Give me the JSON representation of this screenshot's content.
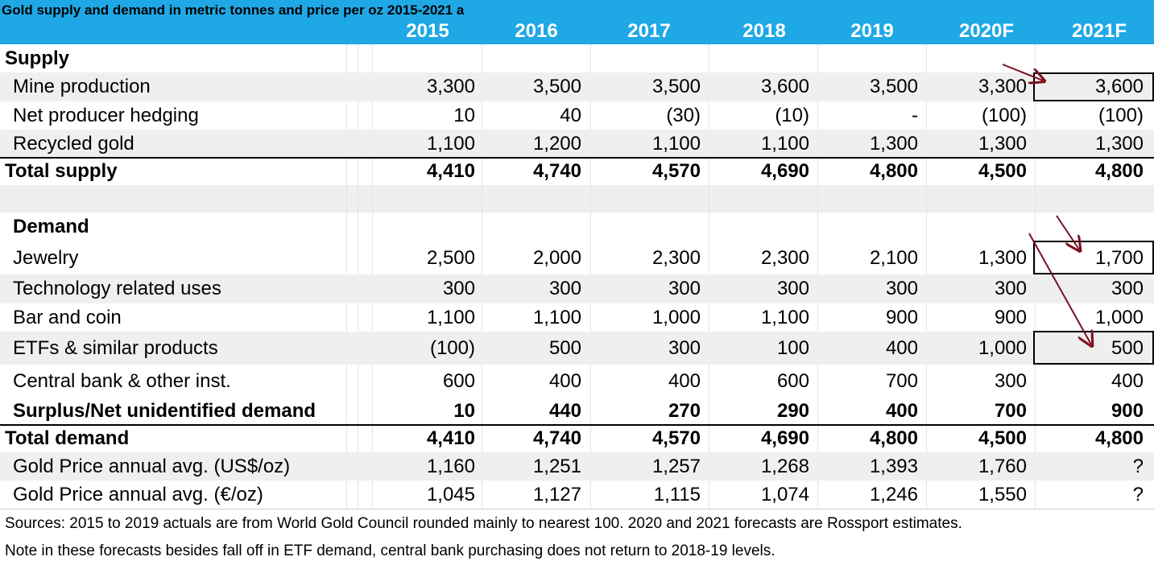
{
  "header": {
    "title": "Gold supply and demand in metric tonnes and price per oz 2015-2021 a",
    "years": [
      "2015",
      "2016",
      "2017",
      "2018",
      "2019",
      "2020F",
      "2021F"
    ]
  },
  "table": {
    "rows": [
      [
        "Supply"
      ],
      [
        "Mine production",
        "3,300",
        "3,500",
        "3,500",
        "3,600",
        "3,500",
        "3,300",
        "3,600"
      ],
      [
        "Net producer hedging",
        "10",
        "40",
        "(30)",
        "(10)",
        "-",
        "(100)",
        "(100)"
      ],
      [
        "Recycled gold",
        "1,100",
        "1,200",
        "1,100",
        "1,100",
        "1,300",
        "1,300",
        "1,300"
      ],
      [
        "Total supply",
        "4,410",
        "4,740",
        "4,570",
        "4,690",
        "4,800",
        "4,500",
        "4,800"
      ],
      [
        "Demand"
      ],
      [
        "Jewelry",
        "2,500",
        "2,000",
        "2,300",
        "2,300",
        "2,100",
        "1,300",
        "1,700"
      ],
      [
        "Technology related uses",
        "300",
        "300",
        "300",
        "300",
        "300",
        "300",
        "300"
      ],
      [
        "Bar and coin",
        "1,100",
        "1,100",
        "1,000",
        "1,100",
        "900",
        "900",
        "1,000"
      ],
      [
        "ETFs & similar products",
        "(100)",
        "500",
        "300",
        "100",
        "400",
        "1,000",
        "500"
      ],
      [
        "Central bank & other inst.",
        "600",
        "400",
        "400",
        "600",
        "700",
        "300",
        "400"
      ],
      [
        "Surplus/Net unidentified demand",
        "10",
        "440",
        "270",
        "290",
        "400",
        "700",
        "900"
      ],
      [
        "Total demand",
        "4,410",
        "4,740",
        "4,570",
        "4,690",
        "4,800",
        "4,500",
        "4,800"
      ],
      [
        "Gold Price annual avg. (US$/oz)",
        "1,160",
        "1,251",
        "1,257",
        "1,268",
        "1,393",
        "1,760",
        "?"
      ],
      [
        "Gold Price annual avg. (€/oz)",
        "1,045",
        "1,127",
        "1,115",
        "1,074",
        "1,246",
        "1,550",
        "?"
      ]
    ]
  },
  "notes": [
    "Sources: 2015 to 2019 actuals are from World Gold Council rounded mainly to nearest 100.  2020 and 2021 forecasts are Rossport estimates.",
    "Note in these forecasts besides fall off in ETF demand, central bank purchasing does not return to 2018-19 levels."
  ]
}
